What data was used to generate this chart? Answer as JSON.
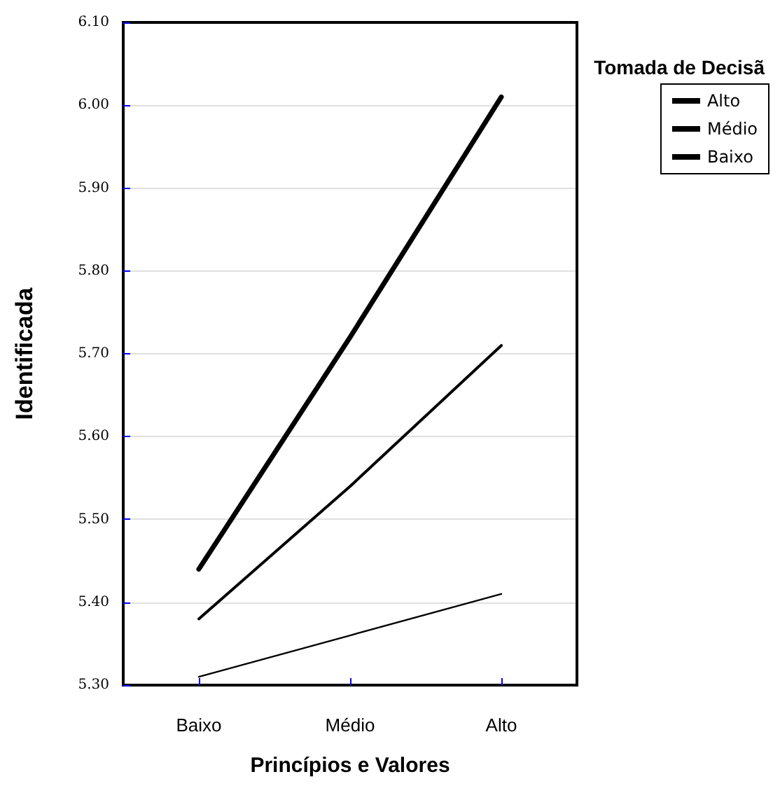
{
  "chart_data": {
    "type": "line",
    "xlabel": "Princípios e Valores",
    "ylabel": "Identificada",
    "legend_title": "Tomada de Decisã",
    "categories": [
      "Baixo",
      "Médio",
      "Alto"
    ],
    "series": [
      {
        "name": "Alto",
        "color": "#000000",
        "values": [
          5.44,
          5.72,
          6.01
        ]
      },
      {
        "name": "Médio",
        "color": "#000000",
        "values": [
          5.38,
          5.54,
          5.71
        ]
      },
      {
        "name": "Baixo",
        "color": "#000000",
        "values": [
          5.31,
          5.36,
          5.41
        ]
      }
    ],
    "ylim": [
      5.3,
      6.1
    ],
    "yticks": [
      {
        "value": 5.3,
        "label": "5.30"
      },
      {
        "value": 5.4,
        "label": "5.40"
      },
      {
        "value": 5.5,
        "label": "5.50"
      },
      {
        "value": 5.6,
        "label": "5.60"
      },
      {
        "value": 5.7,
        "label": "5.70"
      },
      {
        "value": 5.8,
        "label": "5.80"
      },
      {
        "value": 5.9,
        "label": "5.90"
      },
      {
        "value": 6.0,
        "label": "6.00"
      },
      {
        "value": 6.1,
        "label": "6.10"
      }
    ],
    "grid": "y",
    "legend": "top right",
    "marker": "none",
    "line_style": "solid"
  }
}
